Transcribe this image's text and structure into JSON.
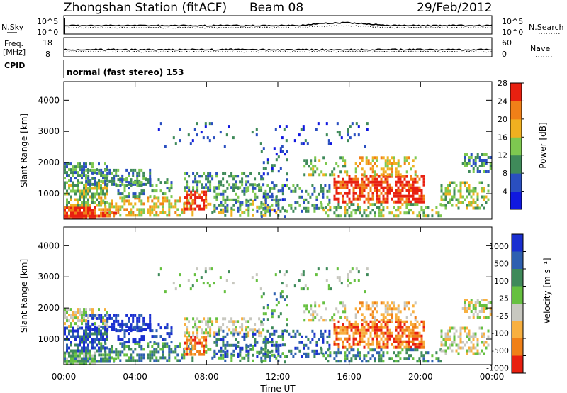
{
  "header": {
    "station": "Zhongshan Station (fitACF)",
    "beam": "Beam 08",
    "date": "29/Feb/2012"
  },
  "noise_panel": {
    "left_label": "N.Sky",
    "right_label": "N.Search",
    "left_ticks": [
      "10^5",
      "10^0"
    ],
    "right_ticks": [
      "10^5",
      "10^0"
    ]
  },
  "freq_panel": {
    "left_label_1": "Freq.",
    "left_label_2": "[MHz]",
    "right_label": "Nave",
    "left_ticks": [
      "18",
      "8"
    ],
    "right_ticks": [
      "60",
      "0"
    ]
  },
  "cpid": {
    "label": "CPID",
    "mode_text": "normal (fast stereo) 153"
  },
  "chart_data": [
    {
      "type": "heatmap",
      "quantity": "Power",
      "ylabel": "Slant Range [km]",
      "ylim": [
        180,
        4600
      ],
      "yticks": [
        "1000",
        "2000",
        "3000",
        "4000"
      ],
      "colorbar": {
        "label": "Power [dB]",
        "ticks": [
          "4",
          "8",
          "12",
          "16",
          "20",
          "24",
          "28"
        ],
        "colors": [
          "#1018e0",
          "#2a4fc0",
          "#3f8a5a",
          "#7ec850",
          "#f0b020",
          "#f08018",
          "#e82010"
        ]
      }
    },
    {
      "type": "heatmap",
      "quantity": "Velocity",
      "ylabel": "Slant Range [km]",
      "ylim": [
        180,
        4600
      ],
      "yticks": [
        "1000",
        "2000",
        "3000",
        "4000"
      ],
      "colorbar": {
        "label": "Velocity [m s⁻¹]",
        "ticks": [
          "1000",
          "500",
          "100",
          "25",
          "-25",
          "-100",
          "-500",
          "-1000"
        ],
        "colors": [
          "#1a2fd0",
          "#2e60b0",
          "#3f8a5a",
          "#66c040",
          "#c8c8c0",
          "#f8b040",
          "#f08018",
          "#e82010"
        ]
      },
      "xlabel": "Time UT",
      "xticks": [
        "00:00",
        "04:00",
        "08:00",
        "12:00",
        "16:00",
        "20:00",
        "00:00"
      ]
    }
  ]
}
